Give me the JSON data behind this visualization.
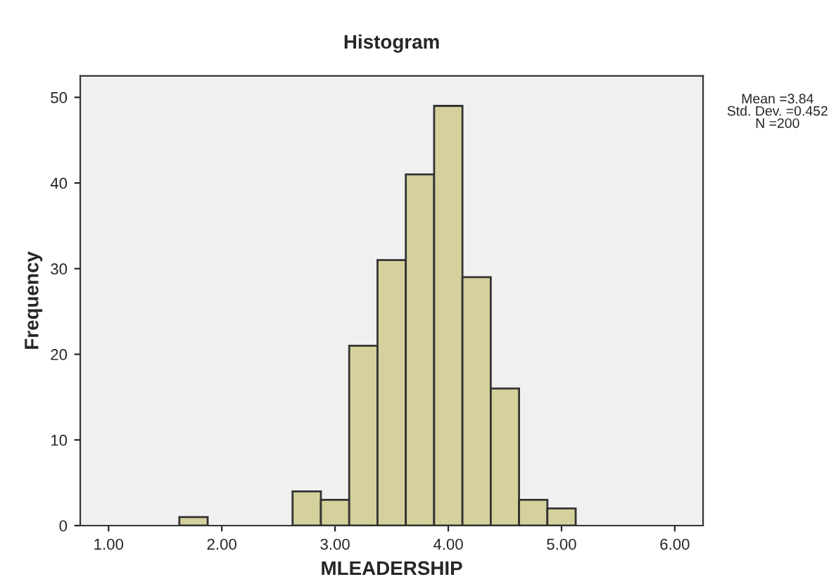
{
  "chart_data": {
    "type": "histogram",
    "title": "Histogram",
    "xlabel": "MLEADERSHIP",
    "ylabel": "Frequency",
    "bins": [
      1.625,
      1.875,
      2.125,
      2.375,
      2.625,
      2.875,
      3.125,
      3.375,
      3.625,
      3.875,
      4.125,
      4.375,
      4.625,
      4.875,
      5.125
    ],
    "values": [
      1,
      0,
      0,
      0,
      4,
      3,
      21,
      31,
      41,
      49,
      29,
      16,
      3,
      2
    ],
    "color": "#d5d19c",
    "xlim": [
      0.75,
      6.25
    ],
    "xticks": [
      {
        "value": 1,
        "label": "1.00"
      },
      {
        "value": 2,
        "label": "2.00"
      },
      {
        "value": 3,
        "label": "3.00"
      },
      {
        "value": 4,
        "label": "4.00"
      },
      {
        "value": 5,
        "label": "5.00"
      },
      {
        "value": 6,
        "label": "6.00"
      }
    ],
    "ylim": [
      0,
      52.5
    ],
    "yticks": [
      0,
      10,
      20,
      30,
      40,
      50
    ],
    "grid": false,
    "legend": false,
    "annotations": [
      "Mean =3.84\nStd. Dev. =0.452\nN =200"
    ]
  }
}
